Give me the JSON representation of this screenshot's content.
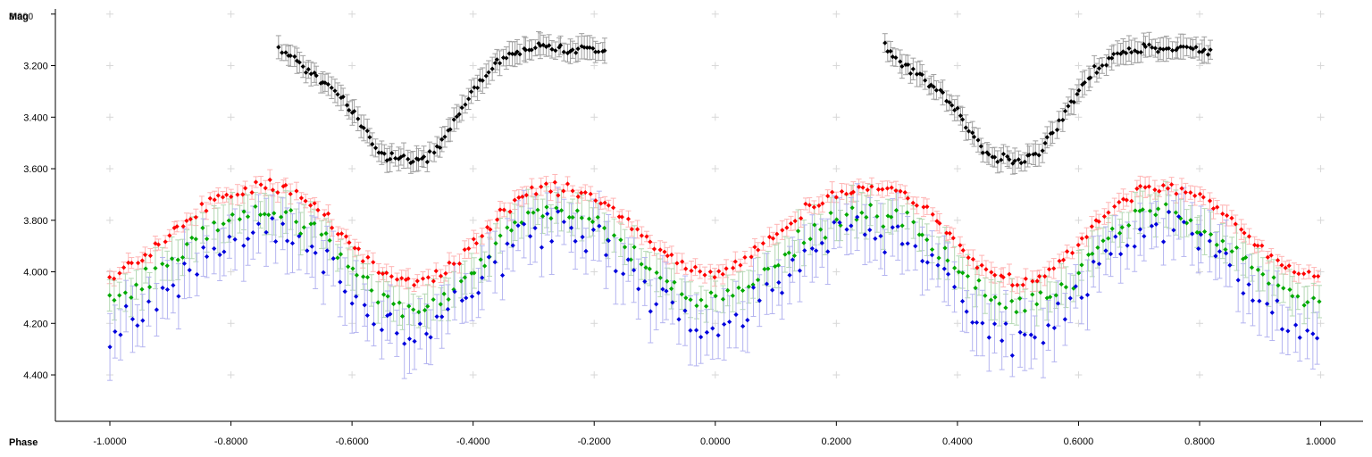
{
  "chart_data": {
    "type": "scatter",
    "xlabel": "Phase",
    "ylabel": "Mag",
    "ylabel_overprint": "3.000",
    "x_ticks": [
      "-1.0000",
      "-0.8000",
      "-0.6000",
      "-0.4000",
      "-0.2000",
      "0.0000",
      "0.2000",
      "0.4000",
      "0.6000",
      "0.8000",
      "1.0000"
    ],
    "y_ticks": [
      "3.200",
      "3.400",
      "3.600",
      "3.800",
      "4.000",
      "4.200",
      "4.400"
    ],
    "xlim": [
      -1.09,
      1.07
    ],
    "ylim": [
      2.98,
      4.58
    ],
    "y_inverted": true,
    "grid": "plus-markers",
    "error_bars": true,
    "series": [
      {
        "color": "#000000",
        "error_color": "#a0a0a0",
        "x": [
          -0.72,
          -0.7,
          -0.68,
          -0.66,
          -0.64,
          -0.62,
          -0.6,
          -0.58,
          -0.56,
          -0.54,
          -0.52,
          -0.5,
          -0.48,
          -0.46,
          -0.44,
          -0.42,
          -0.4,
          -0.38,
          -0.36,
          -0.34,
          -0.32,
          -0.3,
          -0.28,
          -0.26,
          -0.24,
          -0.22,
          -0.2,
          -0.18
        ],
        "y": [
          3.13,
          3.17,
          3.21,
          3.24,
          3.28,
          3.32,
          3.38,
          3.45,
          3.52,
          3.56,
          3.55,
          3.57,
          3.56,
          3.52,
          3.45,
          3.38,
          3.3,
          3.24,
          3.19,
          3.16,
          3.15,
          3.14,
          3.12,
          3.13,
          3.14,
          3.13,
          3.14,
          3.16
        ]
      },
      {
        "color": "#ff0000",
        "error_color": "#ffb4b4",
        "x": [
          -1.0,
          -0.95,
          -0.9,
          -0.85,
          -0.8,
          -0.75,
          -0.7,
          -0.65,
          -0.6,
          -0.55,
          -0.5,
          -0.45,
          -0.4,
          -0.35,
          -0.3,
          -0.25,
          -0.2,
          -0.15,
          -0.1,
          -0.05,
          0.0,
          0.05,
          0.1,
          0.15,
          0.2,
          0.25,
          0.3,
          0.35,
          0.4,
          0.45,
          0.5,
          0.55,
          0.6,
          0.65,
          0.7,
          0.75,
          0.8,
          0.85,
          0.9,
          0.95,
          1.0
        ],
        "y": [
          4.02,
          3.95,
          3.86,
          3.76,
          3.7,
          3.67,
          3.68,
          3.76,
          3.9,
          4.0,
          4.05,
          4.01,
          3.9,
          3.76,
          3.68,
          3.67,
          3.71,
          3.8,
          3.9,
          3.99,
          4.02,
          3.95,
          3.86,
          3.76,
          3.7,
          3.67,
          3.68,
          3.76,
          3.9,
          4.0,
          4.05,
          4.01,
          3.9,
          3.76,
          3.68,
          3.67,
          3.71,
          3.8,
          3.9,
          3.99,
          4.02
        ]
      },
      {
        "color": "#00aa00",
        "error_color": "#b4d8b4",
        "x": [
          -1.0,
          -0.95,
          -0.9,
          -0.85,
          -0.8,
          -0.75,
          -0.7,
          -0.65,
          -0.6,
          -0.55,
          -0.5,
          -0.45,
          -0.4,
          -0.35,
          -0.3,
          -0.25,
          -0.2,
          -0.15,
          -0.1,
          -0.05,
          0.0,
          0.05,
          0.1,
          0.15,
          0.2,
          0.25,
          0.3,
          0.35,
          0.4,
          0.45,
          0.5,
          0.55,
          0.6,
          0.65,
          0.7,
          0.75,
          0.8,
          0.85,
          0.9,
          0.95,
          1.0
        ],
        "y": [
          4.12,
          4.05,
          3.96,
          3.86,
          3.8,
          3.77,
          3.78,
          3.86,
          4.0,
          4.1,
          4.15,
          4.11,
          4.0,
          3.86,
          3.78,
          3.77,
          3.81,
          3.9,
          4.0,
          4.09,
          4.12,
          4.05,
          3.96,
          3.86,
          3.8,
          3.77,
          3.78,
          3.86,
          4.0,
          4.1,
          4.15,
          4.11,
          4.0,
          3.86,
          3.78,
          3.77,
          3.81,
          3.9,
          4.0,
          4.09,
          4.12
        ]
      },
      {
        "color": "#0000dd",
        "error_color": "#b4b4f0",
        "x": [
          -1.0,
          -0.95,
          -0.9,
          -0.85,
          -0.8,
          -0.75,
          -0.7,
          -0.65,
          -0.6,
          -0.55,
          -0.5,
          -0.45,
          -0.4,
          -0.35,
          -0.3,
          -0.25,
          -0.2,
          -0.15,
          -0.1,
          -0.05,
          0.0,
          0.05,
          0.1,
          0.15,
          0.2,
          0.25,
          0.3,
          0.35,
          0.4,
          0.45,
          0.5,
          0.55,
          0.6,
          0.65,
          0.7,
          0.75,
          0.8,
          0.85,
          0.9,
          0.95,
          1.0
        ],
        "y": [
          4.26,
          4.18,
          4.06,
          3.94,
          3.86,
          3.82,
          3.84,
          3.94,
          4.1,
          4.22,
          4.28,
          4.22,
          4.08,
          3.94,
          3.85,
          3.82,
          3.86,
          3.98,
          4.1,
          4.2,
          4.26,
          4.18,
          4.06,
          3.94,
          3.86,
          3.82,
          3.84,
          3.94,
          4.1,
          4.22,
          4.28,
          4.22,
          4.08,
          3.94,
          3.85,
          3.82,
          3.86,
          3.98,
          4.1,
          4.2,
          4.26
        ]
      }
    ]
  }
}
